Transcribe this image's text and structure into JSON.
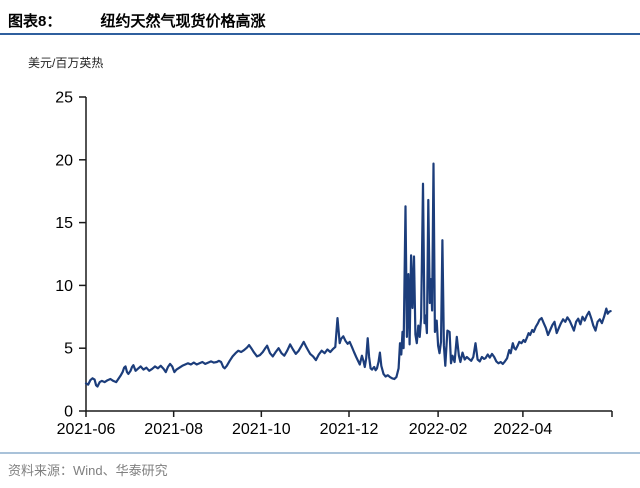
{
  "header": {
    "figure_label": "图表8："
  },
  "footer": {
    "source_text": "资料来源：Wind、华泰研究"
  },
  "colors": {
    "line": "#1C3D7B",
    "axis": "#1a1a1a",
    "tick_label": "#000000",
    "title_rule": "#2F5F9E",
    "footer_rule": "#A9C2D9",
    "footer_text": "#808080"
  },
  "chart_data": {
    "type": "line",
    "title": "纽约天然气现货价格高涨",
    "unit_label": "美元/百万英热",
    "y_axis": {
      "ticks": [
        0,
        5,
        10,
        15,
        20,
        25
      ],
      "range": [
        0,
        25
      ],
      "grid": false
    },
    "x_axis": {
      "t_end": 366,
      "ticks": [
        {
          "t": 0,
          "label": "2021-06"
        },
        {
          "t": 61,
          "label": "2021-08"
        },
        {
          "t": 122,
          "label": "2021-10"
        },
        {
          "t": 183,
          "label": "2021-12"
        },
        {
          "t": 245,
          "label": "2022-02"
        },
        {
          "t": 304,
          "label": "2022-04"
        },
        {
          "t": 366,
          "label": ""
        }
      ]
    },
    "legend": "none",
    "series": [
      {
        "name": "纽约天然气现货价格",
        "points": [
          [
            0,
            2.2
          ],
          [
            1.5,
            2.1
          ],
          [
            3,
            2.45
          ],
          [
            4.5,
            2.6
          ],
          [
            6,
            2.5
          ],
          [
            7,
            2.05
          ],
          [
            8,
            1.95
          ],
          [
            9.5,
            2.3
          ],
          [
            11,
            2.4
          ],
          [
            13,
            2.3
          ],
          [
            15,
            2.45
          ],
          [
            17,
            2.55
          ],
          [
            19,
            2.4
          ],
          [
            21,
            2.3
          ],
          [
            22.5,
            2.55
          ],
          [
            24,
            2.8
          ],
          [
            25.5,
            3.1
          ],
          [
            26.5,
            3.45
          ],
          [
            27.5,
            3.55
          ],
          [
            28.5,
            3.1
          ],
          [
            29.5,
            2.95
          ],
          [
            31,
            3.2
          ],
          [
            32,
            3.5
          ],
          [
            33,
            3.65
          ],
          [
            34.5,
            3.2
          ],
          [
            36,
            3.35
          ],
          [
            38,
            3.55
          ],
          [
            40,
            3.3
          ],
          [
            42,
            3.45
          ],
          [
            44,
            3.2
          ],
          [
            46,
            3.35
          ],
          [
            48,
            3.55
          ],
          [
            50,
            3.4
          ],
          [
            52,
            3.6
          ],
          [
            54,
            3.35
          ],
          [
            55.5,
            3.1
          ],
          [
            57,
            3.5
          ],
          [
            58.5,
            3.75
          ],
          [
            60,
            3.55
          ],
          [
            61.5,
            3.1
          ],
          [
            63,
            3.3
          ],
          [
            65,
            3.45
          ],
          [
            67,
            3.6
          ],
          [
            69,
            3.7
          ],
          [
            71,
            3.8
          ],
          [
            73,
            3.7
          ],
          [
            75,
            3.85
          ],
          [
            77,
            3.7
          ],
          [
            79,
            3.8
          ],
          [
            81,
            3.9
          ],
          [
            83,
            3.75
          ],
          [
            85,
            3.85
          ],
          [
            87,
            3.95
          ],
          [
            89,
            3.85
          ],
          [
            91,
            3.9
          ],
          [
            92.5,
            4.0
          ],
          [
            94,
            3.9
          ],
          [
            95.5,
            3.5
          ],
          [
            96.5,
            3.4
          ],
          [
            98,
            3.6
          ],
          [
            100,
            4.0
          ],
          [
            102,
            4.35
          ],
          [
            104,
            4.6
          ],
          [
            106,
            4.8
          ],
          [
            108,
            4.7
          ],
          [
            110,
            4.85
          ],
          [
            112,
            5.05
          ],
          [
            113.5,
            5.25
          ],
          [
            115,
            5.0
          ],
          [
            117,
            4.65
          ],
          [
            119,
            4.35
          ],
          [
            121,
            4.45
          ],
          [
            123,
            4.7
          ],
          [
            124.5,
            4.95
          ],
          [
            126,
            5.2
          ],
          [
            128,
            4.6
          ],
          [
            130,
            4.35
          ],
          [
            132,
            4.7
          ],
          [
            134,
            5.0
          ],
          [
            136,
            4.6
          ],
          [
            138,
            4.4
          ],
          [
            140,
            4.8
          ],
          [
            142,
            5.3
          ],
          [
            144,
            4.9
          ],
          [
            146,
            4.55
          ],
          [
            148,
            4.8
          ],
          [
            150,
            5.2
          ],
          [
            151.5,
            5.5
          ],
          [
            153,
            5.15
          ],
          [
            154.5,
            4.85
          ],
          [
            156,
            4.55
          ],
          [
            158,
            4.35
          ],
          [
            160,
            4.05
          ],
          [
            162,
            4.5
          ],
          [
            164,
            4.8
          ],
          [
            166,
            4.6
          ],
          [
            168,
            4.9
          ],
          [
            170,
            4.7
          ],
          [
            172,
            4.95
          ],
          [
            173.5,
            5.1
          ],
          [
            175,
            7.4
          ],
          [
            176.5,
            5.4
          ],
          [
            177.5,
            5.75
          ],
          [
            179,
            5.95
          ],
          [
            180.5,
            5.6
          ],
          [
            182,
            5.35
          ],
          [
            183.5,
            5.5
          ],
          [
            185,
            5.1
          ],
          [
            186.5,
            4.7
          ],
          [
            188,
            4.3
          ],
          [
            189.5,
            3.95
          ],
          [
            190.5,
            3.7
          ],
          [
            192,
            4.4
          ],
          [
            193,
            4.0
          ],
          [
            194,
            3.5
          ],
          [
            195,
            4.2
          ],
          [
            196,
            5.8
          ],
          [
            197,
            4.3
          ],
          [
            198,
            3.4
          ],
          [
            199,
            3.3
          ],
          [
            200.5,
            3.5
          ],
          [
            201.5,
            3.25
          ],
          [
            202.5,
            3.4
          ],
          [
            203.5,
            3.9
          ],
          [
            204.5,
            4.65
          ],
          [
            205.5,
            3.6
          ],
          [
            207,
            2.95
          ],
          [
            208.5,
            2.75
          ],
          [
            210,
            2.85
          ],
          [
            211.5,
            2.7
          ],
          [
            213,
            2.6
          ],
          [
            214.5,
            2.55
          ],
          [
            216,
            2.7
          ],
          [
            217.5,
            3.4
          ],
          [
            218.5,
            5.4
          ],
          [
            219.4,
            4.5
          ],
          [
            220.2,
            6.3
          ],
          [
            221,
            5.0
          ],
          [
            222.3,
            16.3
          ],
          [
            223.3,
            5.9
          ],
          [
            224.3,
            10.9
          ],
          [
            225.2,
            5.3
          ],
          [
            226.2,
            12.4
          ],
          [
            227.2,
            8.2
          ],
          [
            228.2,
            12.3
          ],
          [
            229.2,
            6.1
          ],
          [
            230.2,
            5.4
          ],
          [
            231.2,
            6.8
          ],
          [
            232.2,
            5.9
          ],
          [
            233.2,
            7.4
          ],
          [
            234.5,
            18.1
          ],
          [
            235.5,
            7.0
          ],
          [
            236.3,
            7.6
          ],
          [
            237.2,
            6.2
          ],
          [
            238.2,
            16.8
          ],
          [
            239.2,
            8.6
          ],
          [
            240,
            10.5
          ],
          [
            240.8,
            8.0
          ],
          [
            241.8,
            19.7
          ],
          [
            242.8,
            6.3
          ],
          [
            244,
            7.2
          ],
          [
            245,
            5.2
          ],
          [
            246,
            4.6
          ],
          [
            247,
            5.5
          ],
          [
            248,
            13.6
          ],
          [
            249,
            5.2
          ],
          [
            250,
            3.6
          ],
          [
            251.5,
            6.4
          ],
          [
            253,
            6.3
          ],
          [
            254,
            3.8
          ],
          [
            255,
            4.4
          ],
          [
            256.5,
            3.9
          ],
          [
            258,
            5.9
          ],
          [
            259.5,
            4.4
          ],
          [
            260.5,
            3.9
          ],
          [
            262,
            4.65
          ],
          [
            263.5,
            4.1
          ],
          [
            265,
            4.3
          ],
          [
            266.5,
            4.15
          ],
          [
            268,
            4.0
          ],
          [
            269.5,
            4.3
          ],
          [
            271,
            5.4
          ],
          [
            272.5,
            4.1
          ],
          [
            274,
            3.95
          ],
          [
            275.5,
            4.3
          ],
          [
            277,
            4.15
          ],
          [
            278,
            4.2
          ],
          [
            279.5,
            4.5
          ],
          [
            281,
            4.25
          ],
          [
            282.5,
            4.55
          ],
          [
            284,
            4.3
          ],
          [
            285.5,
            3.95
          ],
          [
            287,
            3.8
          ],
          [
            288.5,
            3.9
          ],
          [
            290,
            3.75
          ],
          [
            291.5,
            3.95
          ],
          [
            293,
            4.2
          ],
          [
            294.5,
            4.85
          ],
          [
            295.5,
            4.6
          ],
          [
            297,
            5.4
          ],
          [
            298,
            5.0
          ],
          [
            299,
            4.9
          ],
          [
            300.5,
            5.25
          ],
          [
            301.5,
            5.5
          ],
          [
            303,
            5.4
          ],
          [
            304.5,
            5.65
          ],
          [
            305.5,
            5.5
          ],
          [
            307,
            5.9
          ],
          [
            308,
            6.2
          ],
          [
            309,
            6.05
          ],
          [
            310.5,
            6.45
          ],
          [
            311.5,
            6.3
          ],
          [
            313,
            6.7
          ],
          [
            314.5,
            7.0
          ],
          [
            315.5,
            7.25
          ],
          [
            317,
            7.4
          ],
          [
            318.5,
            7.0
          ],
          [
            320,
            6.6
          ],
          [
            321.5,
            6.05
          ],
          [
            323,
            6.45
          ],
          [
            324.5,
            6.85
          ],
          [
            326,
            7.1
          ],
          [
            327.5,
            6.2
          ],
          [
            329,
            6.6
          ],
          [
            330.5,
            7.0
          ],
          [
            332,
            7.3
          ],
          [
            333.5,
            7.1
          ],
          [
            335,
            7.45
          ],
          [
            336.5,
            7.2
          ],
          [
            338,
            6.8
          ],
          [
            339.5,
            6.4
          ],
          [
            341,
            7.1
          ],
          [
            342.5,
            7.35
          ],
          [
            344,
            6.9
          ],
          [
            345.5,
            7.5
          ],
          [
            347,
            7.2
          ],
          [
            348.5,
            7.6
          ],
          [
            350,
            7.9
          ],
          [
            351.5,
            7.4
          ],
          [
            353,
            6.8
          ],
          [
            354.5,
            6.4
          ],
          [
            356,
            7.1
          ],
          [
            357.5,
            7.3
          ],
          [
            359,
            7.0
          ],
          [
            360.5,
            7.5
          ],
          [
            362,
            8.15
          ],
          [
            363,
            7.75
          ],
          [
            364,
            7.9
          ],
          [
            365,
            7.95
          ]
        ]
      }
    ]
  }
}
